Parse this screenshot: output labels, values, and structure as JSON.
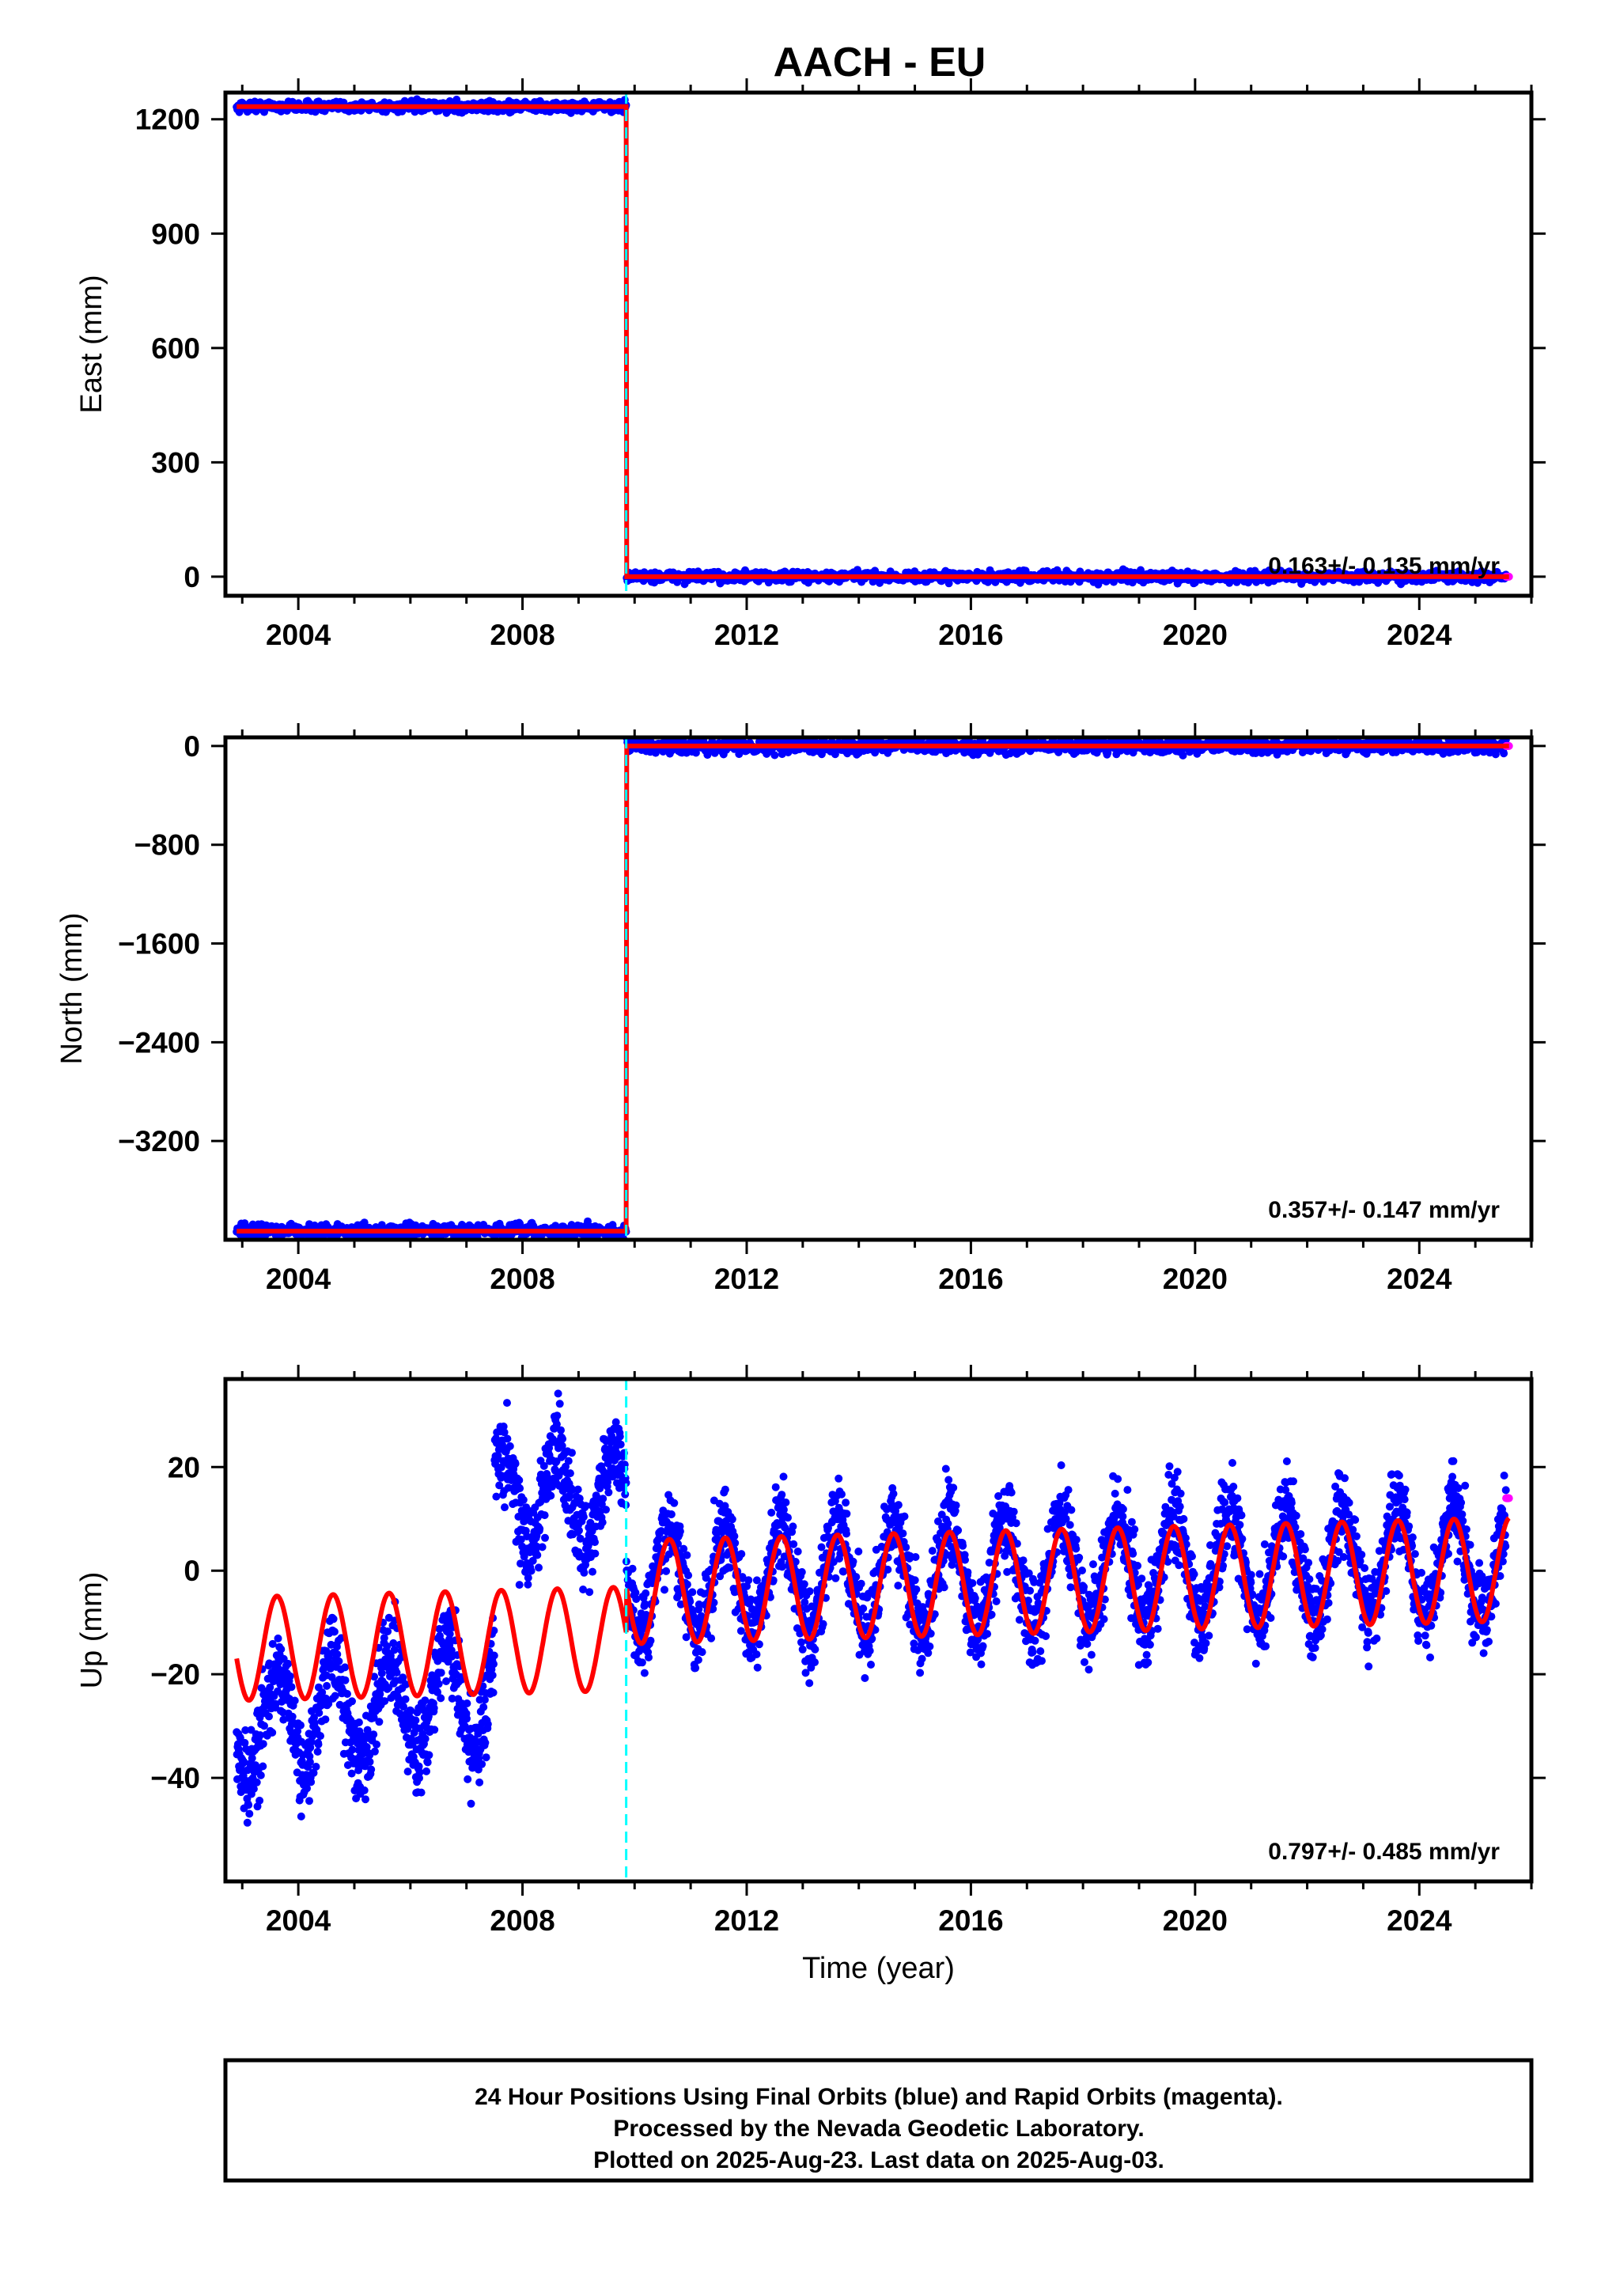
{
  "title": "AACH - EU",
  "colors": {
    "final": "#0000ff",
    "rapid": "#ff00ff",
    "model": "#ff0000",
    "offset_line": "#00ffff",
    "frame": "#000000"
  },
  "footer": {
    "line1": "24 Hour Positions Using Final Orbits (blue) and Rapid Orbits (magenta).",
    "line2": "Processed by the Nevada Geodetic Laboratory.",
    "line3": "Plotted on 2025-Aug-23. Last data on 2025-Aug-03."
  },
  "chart_data": [
    {
      "type": "scatter",
      "component": "east",
      "title": "AACH - EU",
      "ylabel": "East (mm)",
      "xlabel": "",
      "xlim": [
        2002.7,
        2026.0
      ],
      "ylim": [
        -50,
        1270
      ],
      "xticks": [
        "2004",
        "2008",
        "2012",
        "2016",
        "2020",
        "2024"
      ],
      "yticks": [
        "0",
        "300",
        "600",
        "900",
        "1200"
      ],
      "rate": "0.163+/- 0.135 mm/yr",
      "offset_epoch": 2009.85,
      "data_start": 2002.9,
      "data_end": 2025.6,
      "levels": {
        "before": 1233,
        "after": 0
      },
      "seasonal_amplitude": 0,
      "scatter": 3
    },
    {
      "type": "scatter",
      "component": "north",
      "ylabel": "North (mm)",
      "xlabel": "",
      "xlim": [
        2002.7,
        2026.0
      ],
      "ylim": [
        -4000,
        70
      ],
      "xticks": [
        "2004",
        "2008",
        "2012",
        "2016",
        "2020",
        "2024"
      ],
      "yticks": [
        "0",
        "−800",
        "−1600",
        "−2400",
        "−3200"
      ],
      "rate": "0.357+/- 0.147 mm/yr",
      "offset_epoch": 2009.85,
      "data_start": 2002.9,
      "data_end": 2025.6,
      "levels": {
        "before": -3930,
        "after": 0
      },
      "seasonal_amplitude": 0,
      "scatter": 4
    },
    {
      "type": "scatter",
      "component": "up",
      "ylabel": "Up (mm)",
      "xlabel": "Time (year)",
      "xlim": [
        2002.7,
        2026.0
      ],
      "ylim": [
        -60,
        37
      ],
      "xticks": [
        "2004",
        "2008",
        "2012",
        "2016",
        "2020",
        "2024"
      ],
      "yticks": [
        "−40",
        "−20",
        "0",
        "20"
      ],
      "rate": "0.797+/- 0.485 mm/yr",
      "offset_epoch": 2009.85,
      "data_start": 2002.9,
      "data_end": 2025.6,
      "model": {
        "amplitude": 10,
        "phase_peak": 0.62,
        "before_mean": -12,
        "after_mean": -3,
        "rate": 0.797
      },
      "scatter": 6
    }
  ]
}
